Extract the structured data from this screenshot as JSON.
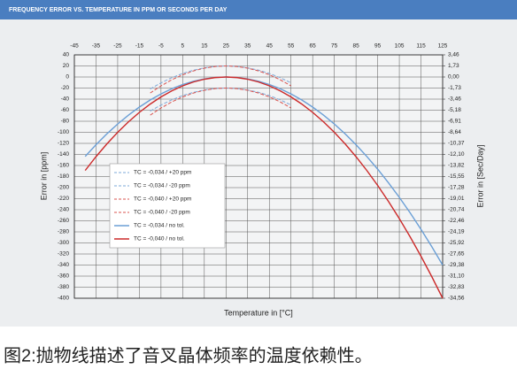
{
  "chart_data": {
    "type": "line",
    "title": "FREQUENCY ERROR VS. TEMPERATURE IN PPM OR SECONDS PER DAY",
    "x_label": "Temperature in [°C]",
    "y_label": "Error in [ppm]",
    "y2_label": "Error in [Sec/Day]",
    "xlim": [
      -45,
      125
    ],
    "xticks": [
      -45,
      -35,
      -25,
      -15,
      -5,
      5,
      15,
      25,
      35,
      45,
      55,
      65,
      75,
      85,
      95,
      105,
      115,
      125
    ],
    "ylim": [
      -400,
      40
    ],
    "yticks": [
      40,
      20,
      0,
      -20,
      -40,
      -60,
      -80,
      -100,
      -120,
      -140,
      -160,
      -180,
      -200,
      -220,
      -240,
      -260,
      -280,
      -300,
      -320,
      -340,
      -360,
      -380,
      -400
    ],
    "y2lim": [
      -34.56,
      3.456
    ],
    "y2ticks": [
      {
        "value": 3.46,
        "label": "3,46"
      },
      {
        "value": 1.73,
        "label": "1,73"
      },
      {
        "value": 0,
        "label": "0,00"
      },
      {
        "value": -1.73,
        "label": "-1,73"
      },
      {
        "value": -3.46,
        "label": "-3,46"
      },
      {
        "value": -5.18,
        "label": "-5,18"
      },
      {
        "value": -6.91,
        "label": "-6,91"
      },
      {
        "value": -8.64,
        "label": "-8,64"
      },
      {
        "value": -10.37,
        "label": "-10,37"
      },
      {
        "value": -12.1,
        "label": "-12,10"
      },
      {
        "value": -13.82,
        "label": "-13,82"
      },
      {
        "value": -15.55,
        "label": "-15,55"
      },
      {
        "value": -17.28,
        "label": "-17,28"
      },
      {
        "value": -19.01,
        "label": "-19,01"
      },
      {
        "value": -20.74,
        "label": "-20,74"
      },
      {
        "value": -22.46,
        "label": "-22,46"
      },
      {
        "value": -24.19,
        "label": "-24,19"
      },
      {
        "value": -25.92,
        "label": "-25,92"
      },
      {
        "value": -27.65,
        "label": "-27,65"
      },
      {
        "value": -29.38,
        "label": "-29,38"
      },
      {
        "value": -31.1,
        "label": "-31,10"
      },
      {
        "value": -32.83,
        "label": "-32,83"
      },
      {
        "value": -34.56,
        "label": "-34,56"
      }
    ],
    "grid": true,
    "legend_position": "center left",
    "series": [
      {
        "name": "TC = -0,034 / +20 ppm",
        "color": "#7ea8d8",
        "line_style": "dashed",
        "x": [
          -10,
          -5,
          0,
          5,
          10,
          15,
          20,
          25,
          30,
          35,
          40,
          45,
          50,
          55
        ],
        "values": [
          -21.65,
          -10.6,
          -1.25,
          6.4,
          12.35,
          16.6,
          19.15,
          20,
          19.15,
          16.6,
          12.35,
          6.4,
          -1.25,
          -10.6
        ]
      },
      {
        "name": "TC = -0,034 / -20 ppm",
        "color": "#7ea8d8",
        "line_style": "dashed",
        "x": [
          -10,
          -5,
          0,
          5,
          10,
          15,
          20,
          25,
          30,
          35,
          40,
          45,
          50,
          55
        ],
        "values": [
          -61.65,
          -50.6,
          -41.25,
          -33.6,
          -27.65,
          -23.4,
          -20.85,
          -20,
          -20.85,
          -23.4,
          -27.65,
          -33.6,
          -41.25,
          -50.6
        ]
      },
      {
        "name": "TC = -0,040 / +20 ppm",
        "color": "#d9534f",
        "line_style": "dashed",
        "x": [
          -10,
          -5,
          0,
          5,
          10,
          15,
          20,
          25,
          30,
          35,
          40,
          45,
          50,
          55
        ],
        "values": [
          -29,
          -16,
          -5,
          4,
          11,
          16,
          19,
          20,
          19,
          16,
          11,
          4,
          -5,
          -16
        ]
      },
      {
        "name": "TC = -0,040 / -20 ppm",
        "color": "#d9534f",
        "line_style": "dashed",
        "x": [
          -10,
          -5,
          0,
          5,
          10,
          15,
          20,
          25,
          30,
          35,
          40,
          45,
          50,
          55
        ],
        "values": [
          -69,
          -56,
          -45,
          -36,
          -29,
          -24,
          -21,
          -20,
          -21,
          -24,
          -29,
          -36,
          -45,
          -56
        ]
      },
      {
        "name": "TC = -0,034 / no tol.",
        "color": "#6b9fd6",
        "line_style": "solid",
        "x": [
          -40,
          -35,
          -30,
          -25,
          -20,
          -15,
          -10,
          -5,
          0,
          5,
          10,
          15,
          20,
          25,
          30,
          35,
          40,
          45,
          50,
          55,
          60,
          65,
          70,
          75,
          80,
          85,
          90,
          95,
          100,
          105,
          110,
          115,
          120,
          125
        ],
        "values": [
          -143.65,
          -122.4,
          -102.85,
          -85,
          -68.85,
          -54.4,
          -41.65,
          -30.6,
          -21.25,
          -13.6,
          -7.65,
          -3.4,
          -0.85,
          0,
          -0.85,
          -3.4,
          -7.65,
          -13.6,
          -21.25,
          -30.6,
          -41.65,
          -54.4,
          -68.85,
          -85,
          -102.85,
          -122.4,
          -143.65,
          -166.6,
          -191.25,
          -217.6,
          -245.65,
          -275.4,
          -306.85,
          -340
        ]
      },
      {
        "name": "TC = -0,040 / no tol.",
        "color": "#cc2a2a",
        "line_style": "solid",
        "x": [
          -40,
          -35,
          -30,
          -25,
          -20,
          -15,
          -10,
          -5,
          0,
          5,
          10,
          15,
          20,
          25,
          30,
          35,
          40,
          45,
          50,
          55,
          60,
          65,
          70,
          75,
          80,
          85,
          90,
          95,
          100,
          105,
          110,
          115,
          120,
          125
        ],
        "values": [
          -169,
          -144,
          -121,
          -100,
          -81,
          -64,
          -49,
          -36,
          -25,
          -16,
          -9,
          -4,
          -1,
          0,
          -1,
          -4,
          -9,
          -16,
          -25,
          -36,
          -49,
          -64,
          -81,
          -100,
          -121,
          -144,
          -169,
          -196,
          -225,
          -256,
          -289,
          -324,
          -361,
          -400
        ]
      }
    ]
  },
  "caption": "图2:抛物线描述了音叉晶体频率的温度依赖性。"
}
